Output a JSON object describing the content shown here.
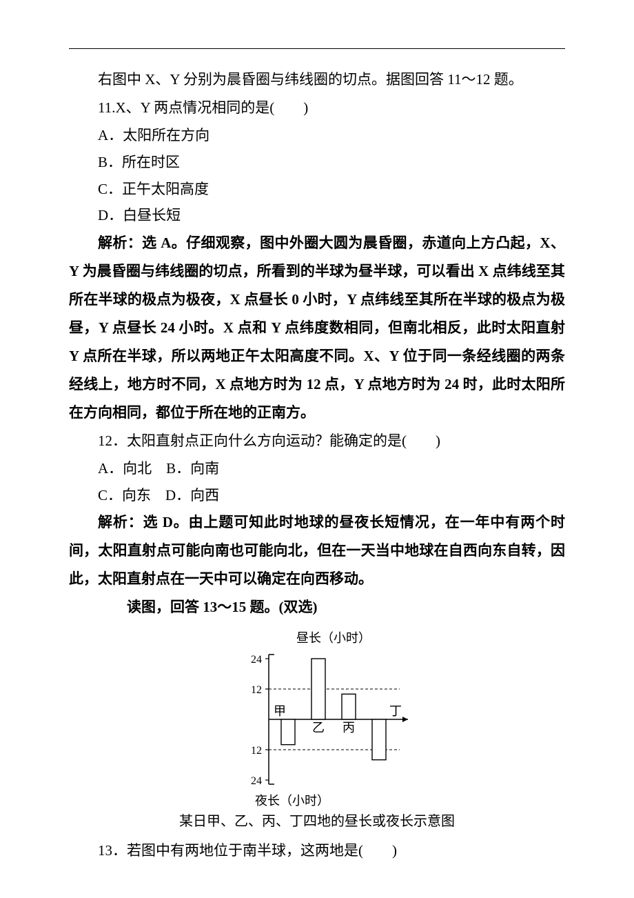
{
  "intro": "右图中 X、Y 分别为晨昏圈与纬线圈的切点。据图回答 11～12 题。",
  "q11": {
    "stem": "11.X、Y 两点情况相同的是(　　)",
    "A": "A．太阳所在方向",
    "B": "B．所在时区",
    "C": "C．正午太阳高度",
    "D": "D．白昼长短",
    "explain": "解析：选 A。仔细观察，图中外圈大圆为晨昏圈，赤道向上方凸起，X、Y 为晨昏圈与纬线圈的切点，所看到的半球为昼半球，可以看出 X 点纬线至其所在半球的极点为极夜，X 点昼长 0 小时，Y 点纬线至其所在半球的极点为极昼，Y 点昼长 24 小时。X 点和 Y 点纬度数相同，但南北相反，此时太阳直射 Y 点所在半球，所以两地正午太阳高度不同。X、Y 位于同一条经线圈的两条经线上，地方时不同，X 点地方时为 12 点，Y 点地方时为 24 时，此时太阳所在方向相同，都位于所在地的正南方。"
  },
  "q12": {
    "stem": "12．太阳直射点正向什么方向运动？能确定的是(　　)",
    "AB": "A．向北　B．向南",
    "CD": "C．向东　D．向西",
    "explain": "解析：选 D。由上题可知此时地球的昼夜长短情况，在一年中有两个时间，太阳直射点可能向南也可能向北，但在一天当中地球在自西向东自转，因此，太阳直射点在一天中可以确定在向西移动。"
  },
  "fig_intro": "读图，回答 13～15 题。(双选)",
  "chart": {
    "top_label": "昼长（小时）",
    "bottom_label": "夜长（小时）",
    "caption": "某日甲、乙、丙、丁四地的昼长或夜长示意图",
    "ticks_up": [
      "12",
      "24"
    ],
    "ticks_down": [
      "12",
      "24"
    ],
    "bars": [
      {
        "name": "甲",
        "dir": "down",
        "value": 10
      },
      {
        "name": "乙",
        "dir": "up",
        "value": 24
      },
      {
        "name": "丙",
        "dir": "up",
        "value": 10
      },
      {
        "name": "丁",
        "dir": "down",
        "value": 16
      }
    ],
    "colors": {
      "stroke": "#000000",
      "bg": "#ffffff",
      "dash": "4,3"
    }
  },
  "q13": {
    "stem": "13．若图中有两地位于南半球，这两地是(　　)"
  }
}
